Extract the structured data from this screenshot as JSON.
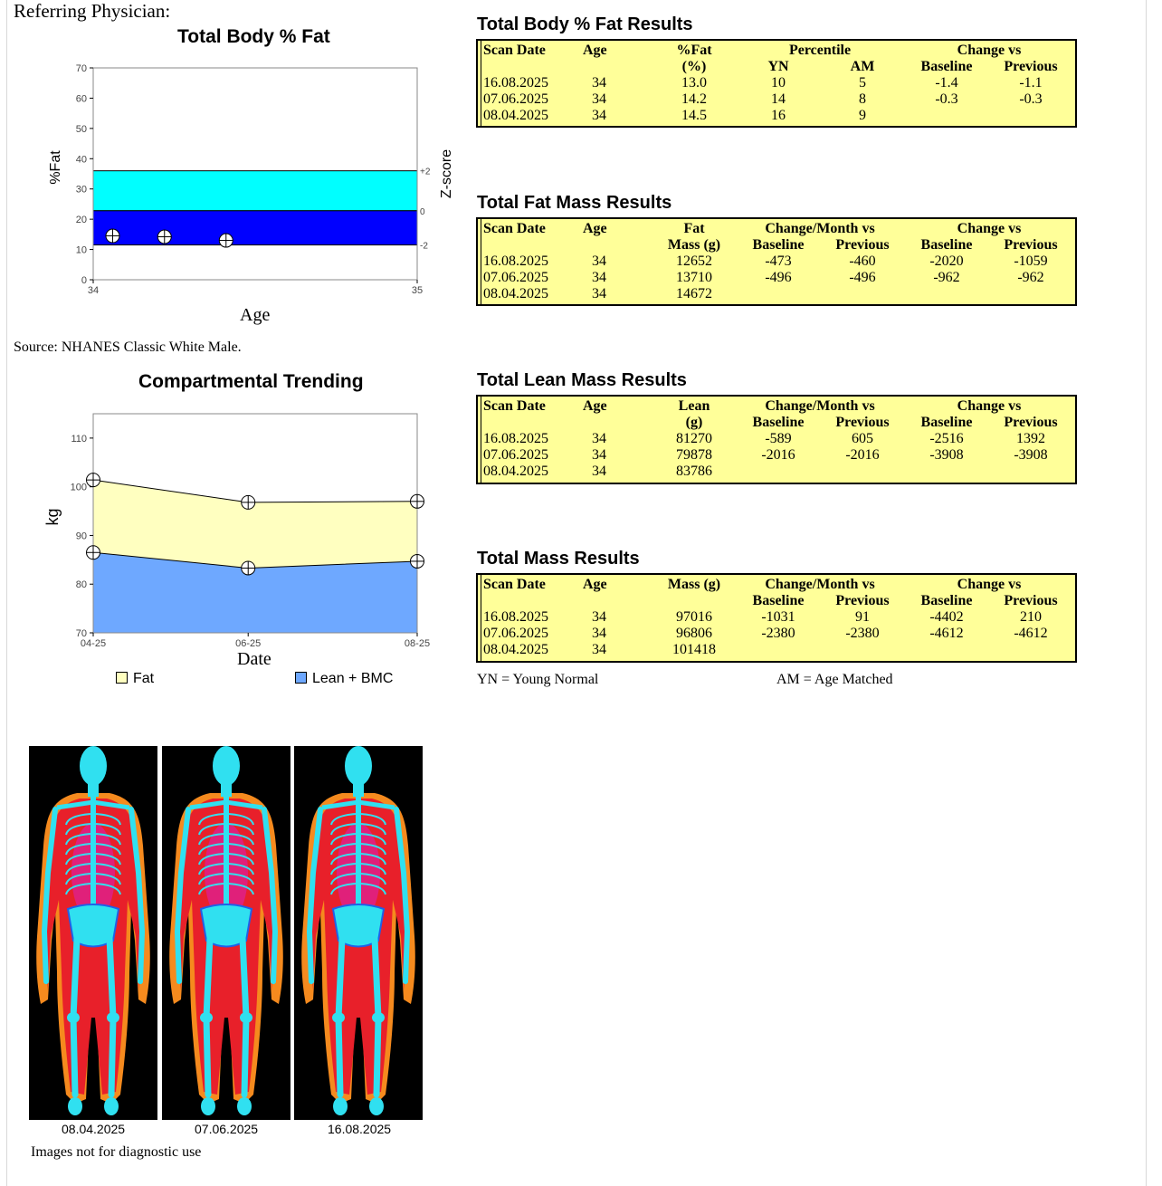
{
  "header": {
    "referring_physician": "Referring Physician:"
  },
  "fat_chart": {
    "title": "Total Body % Fat",
    "ylabel": "%Fat",
    "xlabel": "Age",
    "zlabel": "Z-score",
    "y_ticks": [
      "70",
      "60",
      "50",
      "40",
      "30",
      "20",
      "10",
      "0"
    ],
    "x_ticks": [
      "34",
      "35"
    ],
    "z_ticks": [
      "+2",
      "0",
      "-2"
    ],
    "source": "Source: NHANES Classic White Male."
  },
  "chart_data": [
    {
      "type": "scatter",
      "title": "Total Body % Fat",
      "xlabel": "Age",
      "ylabel": "%Fat",
      "xlim": [
        34,
        35
      ],
      "ylim": [
        0,
        70
      ],
      "x": [
        34.06,
        34.22,
        34.41
      ],
      "y": [
        14.5,
        14.2,
        13.0
      ],
      "bands": [
        {
          "name": "+2 to 0",
          "range": [
            22.8,
            36.0
          ],
          "color": "#00ffff"
        },
        {
          "name": "0 to -2",
          "range": [
            11.5,
            22.8
          ],
          "color": "#0000ff"
        }
      ]
    },
    {
      "type": "area",
      "title": "Compartmental Trending",
      "xlabel": "Date",
      "ylabel": "kg",
      "categories": [
        "04-25",
        "06-25",
        "08-25"
      ],
      "x": [
        0,
        1.65,
        3.45
      ],
      "ylim": [
        70,
        115
      ],
      "y_ticks": [
        "110",
        "100",
        "90",
        "80",
        "70"
      ],
      "series": [
        {
          "name": "Lean + BMC",
          "values": [
            86.5,
            83.3,
            84.7
          ],
          "color": "#6ea8ff"
        },
        {
          "name": "Fat",
          "values": [
            101.4,
            96.8,
            97.0
          ],
          "color": "#ffffc0"
        }
      ]
    }
  ],
  "trend_chart": {
    "title": "Compartmental Trending",
    "ylabel": "kg",
    "xlabel": "Date",
    "y_ticks": [
      "110",
      "100",
      "90",
      "80",
      "70"
    ],
    "x_ticks": [
      "04-25",
      "06-25",
      "08-25"
    ],
    "legend": {
      "fat": "Fat",
      "lean": "Lean + BMC"
    }
  },
  "pct_fat": {
    "title": "Total Body % Fat Results",
    "h": {
      "scan_date": "Scan Date",
      "age": "Age",
      "fat1": "%Fat",
      "fat2": "(%)",
      "percentile": "Percentile",
      "yn": "YN",
      "am": "AM",
      "change": "Change vs",
      "baseline": "Baseline",
      "previous": "Previous"
    },
    "rows": [
      [
        "16.08.2025",
        "34",
        "13.0",
        "10",
        "5",
        "-1.4",
        "-1.1"
      ],
      [
        "07.06.2025",
        "34",
        "14.2",
        "14",
        "8",
        "-0.3",
        "-0.3"
      ],
      [
        "08.04.2025",
        "34",
        "14.5",
        "16",
        "9",
        "",
        ""
      ]
    ]
  },
  "fat_mass": {
    "title": "Total Fat Mass Results",
    "h": {
      "scan_date": "Scan Date",
      "age": "Age",
      "m1": "Fat",
      "m2": "Mass (g)",
      "cm": "Change/Month vs",
      "change": "Change vs",
      "baseline": "Baseline",
      "previous": "Previous"
    },
    "rows": [
      [
        "16.08.2025",
        "34",
        "12652",
        "-473",
        "-460",
        "-2020",
        "-1059"
      ],
      [
        "07.06.2025",
        "34",
        "13710",
        "-496",
        "-496",
        "-962",
        "-962"
      ],
      [
        "08.04.2025",
        "34",
        "14672",
        "",
        "",
        "",
        ""
      ]
    ]
  },
  "lean_mass": {
    "title": "Total Lean Mass Results",
    "h": {
      "scan_date": "Scan Date",
      "age": "Age",
      "m1": "Lean",
      "m2": "(g)",
      "cm": "Change/Month vs",
      "change": "Change vs",
      "baseline": "Baseline",
      "previous": "Previous"
    },
    "rows": [
      [
        "16.08.2025",
        "34",
        "81270",
        "-589",
        "605",
        "-2516",
        "1392"
      ],
      [
        "07.06.2025",
        "34",
        "79878",
        "-2016",
        "-2016",
        "-3908",
        "-3908"
      ],
      [
        "08.04.2025",
        "34",
        "83786",
        "",
        "",
        "",
        ""
      ]
    ]
  },
  "total_mass": {
    "title": "Total Mass Results",
    "h": {
      "scan_date": "Scan Date",
      "age": "Age",
      "m1": "Mass (g)",
      "cm": "Change/Month vs",
      "change": "Change vs",
      "baseline": "Baseline",
      "previous": "Previous"
    },
    "rows": [
      [
        "16.08.2025",
        "34",
        "97016",
        "-1031",
        "91",
        "-4402",
        "210"
      ],
      [
        "07.06.2025",
        "34",
        "96806",
        "-2380",
        "-2380",
        "-4612",
        "-4612"
      ],
      [
        "08.04.2025",
        "34",
        "101418",
        "",
        "",
        "",
        ""
      ]
    ]
  },
  "footnotes": {
    "yn": "YN = Young Normal",
    "am": "AM = Age Matched"
  },
  "images": {
    "dates": [
      "08.04.2025",
      "07.06.2025",
      "16.08.2025"
    ],
    "disclaimer": "Images not for diagnostic use"
  }
}
